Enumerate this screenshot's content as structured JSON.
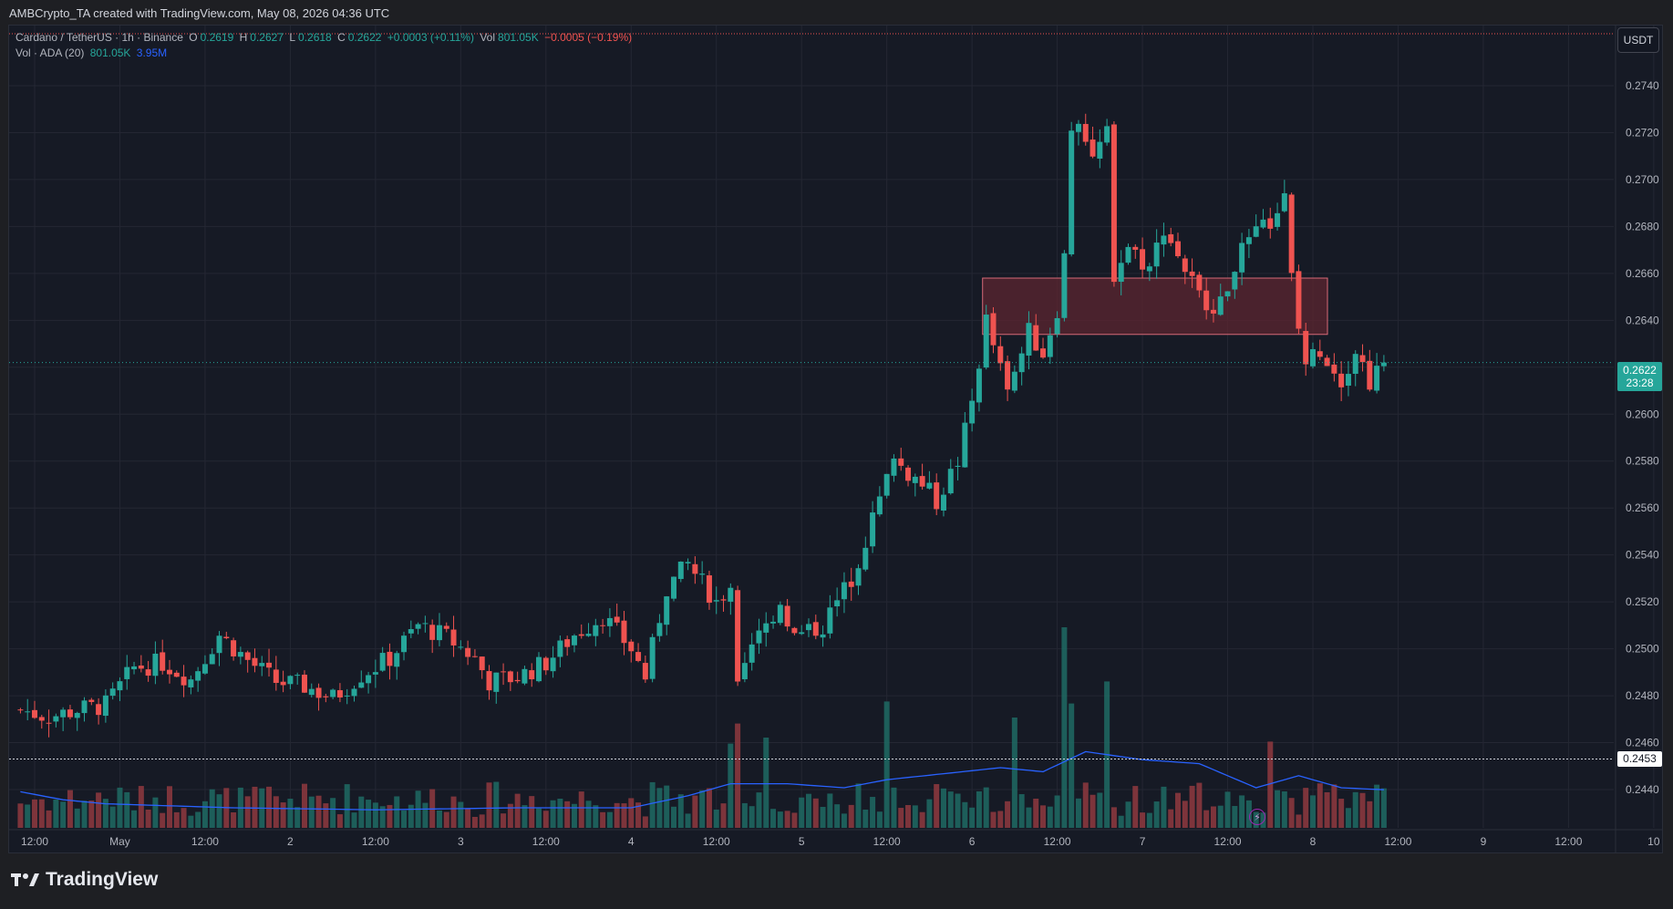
{
  "header": {
    "caption": "AMBCrypto_TA created with TradingView.com, May 08, 2026 04:36 UTC"
  },
  "legend": {
    "symbol": "Cardano / TetherUS · 1h · Binance",
    "o_label": "O",
    "o_value": "0.2619",
    "h_label": "H",
    "h_value": "0.2627",
    "l_label": "L",
    "l_value": "0.2618",
    "c_label": "C",
    "c_value": "0.2622",
    "change": "+0.0003 (+0.11%)",
    "vol_label": "Vol",
    "vol_value": "801.05K",
    "vol_change": "−0.0005 (−0.19%)",
    "vol_indicator": "Vol · ADA (20)",
    "vol_indicator_value": "801.05K",
    "vol_ma_value": "3.95M"
  },
  "currency_badge": "USDT",
  "current_price": {
    "price": "0.2622",
    "countdown": "23:28"
  },
  "marker_price": "0.2453",
  "footer": {
    "brand": "TradingView"
  },
  "icons": {
    "lightning": "lightning-icon",
    "brand_logo": "tradingview-logo-icon"
  },
  "colors": {
    "up": "#26a69a",
    "down": "#ef5350",
    "ma": "#2962ff",
    "zone": "#5c2630",
    "background": "#161a25",
    "grid": "#242733"
  },
  "chart_data": {
    "type": "candlestick",
    "title": "Cardano / TetherUS · 1h · Binance",
    "xlabel": "",
    "ylabel": "",
    "ylim": [
      0.2431,
      0.2772
    ],
    "yticks": [
      0.244,
      0.246,
      0.248,
      0.25,
      0.252,
      0.254,
      0.256,
      0.258,
      0.26,
      0.262,
      0.264,
      0.266,
      0.268,
      0.27,
      0.272,
      0.274
    ],
    "ytick_labels": [
      "0.2440",
      "0.2460",
      "0.2480",
      "0.2500",
      "0.2520",
      "0.2540",
      "0.2560",
      "0.2580",
      "0.2600",
      "0.2620",
      "0.2640",
      "0.2660",
      "0.2680",
      "0.2700",
      "0.2720",
      "0.2740"
    ],
    "xticks": [
      {
        "hour": 12,
        "label": "12:00"
      },
      {
        "hour": 24,
        "label": "May"
      },
      {
        "hour": 36,
        "label": "12:00"
      },
      {
        "hour": 48,
        "label": "2"
      },
      {
        "hour": 60,
        "label": "12:00"
      },
      {
        "hour": 72,
        "label": "3"
      },
      {
        "hour": 84,
        "label": "12:00"
      },
      {
        "hour": 96,
        "label": "4"
      },
      {
        "hour": 108,
        "label": "12:00"
      },
      {
        "hour": 120,
        "label": "5"
      },
      {
        "hour": 132,
        "label": "12:00"
      },
      {
        "hour": 144,
        "label": "6"
      },
      {
        "hour": 156,
        "label": "12:00"
      },
      {
        "hour": 168,
        "label": "7"
      },
      {
        "hour": 180,
        "label": "12:00"
      },
      {
        "hour": 192,
        "label": "8"
      },
      {
        "hour": 204,
        "label": "12:00"
      },
      {
        "hour": 216,
        "label": "9"
      },
      {
        "hour": 228,
        "label": "12:00"
      },
      {
        "hour": 240,
        "label": "10"
      }
    ],
    "first_hour": 10,
    "price_anchors": [
      [
        10,
        0.2474
      ],
      [
        14,
        0.2471
      ],
      [
        18,
        0.2474
      ],
      [
        22,
        0.2476
      ],
      [
        26,
        0.2492
      ],
      [
        30,
        0.2494
      ],
      [
        34,
        0.2487
      ],
      [
        38,
        0.2506
      ],
      [
        42,
        0.2495
      ],
      [
        46,
        0.2486
      ],
      [
        50,
        0.2484
      ],
      [
        54,
        0.2479
      ],
      [
        58,
        0.2489
      ],
      [
        62,
        0.2496
      ],
      [
        66,
        0.251
      ],
      [
        70,
        0.2505
      ],
      [
        74,
        0.2496
      ],
      [
        76,
        0.2486
      ],
      [
        80,
        0.2488
      ],
      [
        84,
        0.2494
      ],
      [
        88,
        0.2506
      ],
      [
        92,
        0.2514
      ],
      [
        96,
        0.25
      ],
      [
        98,
        0.2488
      ],
      [
        101,
        0.2526
      ],
      [
        104,
        0.2536
      ],
      [
        108,
        0.252
      ],
      [
        110,
        0.2527
      ],
      [
        111,
        0.2482
      ],
      [
        113,
        0.25
      ],
      [
        117,
        0.252
      ],
      [
        119,
        0.2505
      ],
      [
        123,
        0.251
      ],
      [
        127,
        0.253
      ],
      [
        130,
        0.2555
      ],
      [
        133,
        0.258
      ],
      [
        137,
        0.257
      ],
      [
        139,
        0.2563
      ],
      [
        142,
        0.258
      ],
      [
        144,
        0.2605
      ],
      [
        146,
        0.264
      ],
      [
        149,
        0.2608
      ],
      [
        152,
        0.2635
      ],
      [
        154,
        0.2626
      ],
      [
        156,
        0.2645
      ],
      [
        157,
        0.2667
      ],
      [
        158,
        0.2722
      ],
      [
        159,
        0.2728
      ],
      [
        161,
        0.271
      ],
      [
        163,
        0.2719
      ],
      [
        164,
        0.266
      ],
      [
        166,
        0.2672
      ],
      [
        169,
        0.2662
      ],
      [
        171,
        0.268
      ],
      [
        174,
        0.2662
      ],
      [
        176,
        0.265
      ],
      [
        179,
        0.2646
      ],
      [
        181,
        0.2665
      ],
      [
        184,
        0.2676
      ],
      [
        186,
        0.2682
      ],
      [
        188,
        0.2692
      ],
      [
        189,
        0.2658
      ],
      [
        190,
        0.2636
      ],
      [
        191,
        0.2622
      ],
      [
        193,
        0.2628
      ],
      [
        196,
        0.2615
      ],
      [
        198,
        0.2628
      ],
      [
        200,
        0.2614
      ],
      [
        202,
        0.2622
      ]
    ],
    "volume_ma_anchors": [
      [
        10,
        0.18
      ],
      [
        16,
        0.14
      ],
      [
        22,
        0.12
      ],
      [
        40,
        0.1
      ],
      [
        60,
        0.09
      ],
      [
        80,
        0.1
      ],
      [
        96,
        0.1
      ],
      [
        104,
        0.16
      ],
      [
        110,
        0.22
      ],
      [
        118,
        0.22
      ],
      [
        126,
        0.2
      ],
      [
        132,
        0.24
      ],
      [
        140,
        0.27
      ],
      [
        148,
        0.3
      ],
      [
        154,
        0.28
      ],
      [
        160,
        0.38
      ],
      [
        168,
        0.34
      ],
      [
        176,
        0.32
      ],
      [
        184,
        0.2
      ],
      [
        190,
        0.26
      ],
      [
        196,
        0.2
      ],
      [
        202,
        0.19
      ]
    ],
    "volume_spikes": [
      {
        "hour": 110,
        "value": 0.42
      },
      {
        "hour": 111,
        "value": 0.52
      },
      {
        "hour": 115,
        "value": 0.45
      },
      {
        "hour": 132,
        "value": 0.63
      },
      {
        "hour": 150,
        "value": 0.55
      },
      {
        "hour": 157,
        "value": 1.0
      },
      {
        "hour": 158,
        "value": 0.62
      },
      {
        "hour": 163,
        "value": 0.73
      },
      {
        "hour": 186,
        "value": 0.43
      }
    ],
    "zones": [
      {
        "from_hour": 146,
        "to_hour": 192,
        "top": 0.2658,
        "bottom": 0.2634
      }
    ],
    "horizontal_lines": [
      0.2453
    ]
  }
}
